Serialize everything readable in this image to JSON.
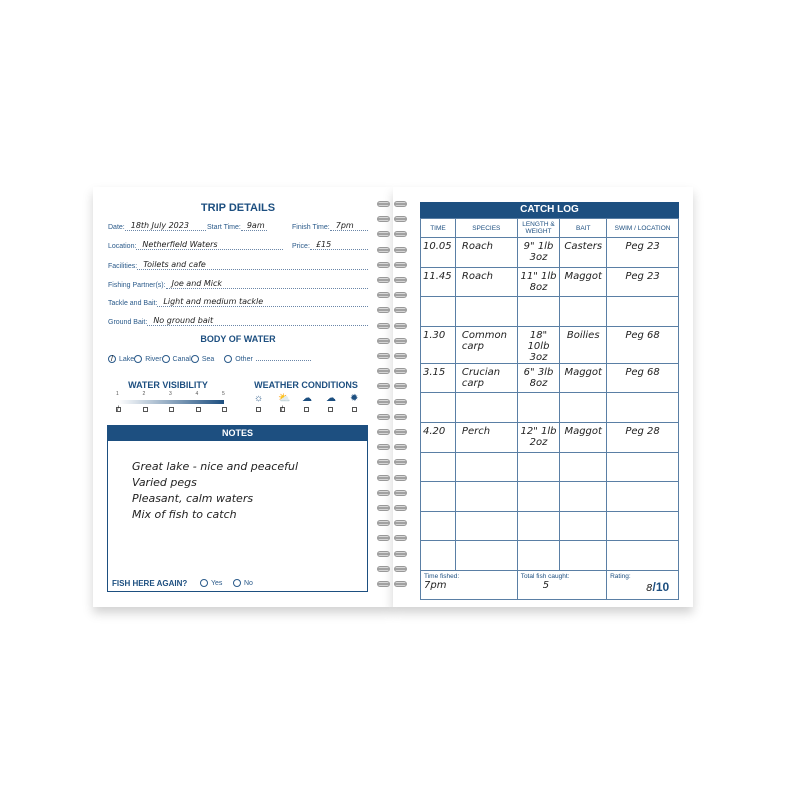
{
  "trip_details": {
    "title": "TRIP DETAILS",
    "date_label": "Date:",
    "date": "18th July 2023",
    "start_label": "Start Time:",
    "start": "9am",
    "finish_label": "Finish Time:",
    "finish": "7pm",
    "location_label": "Location:",
    "location": "Netherfield Waters",
    "price_label": "Price:",
    "price": "£15",
    "facilities_label": "Facilities:",
    "facilities": "Toilets and cafe",
    "partners_label": "Fishing Partner(s):",
    "partners": "Joe and Mick",
    "tackle_label": "Tackle and Bait:",
    "tackle": "Light and medium tackle",
    "groundbait_label": "Ground Bait:",
    "groundbait": "No ground bait"
  },
  "body_of_water": {
    "title": "BODY OF WATER",
    "options": [
      "Lake",
      "River",
      "Canal",
      "Sea",
      "Other"
    ],
    "selected": "Lake"
  },
  "water_visibility": {
    "title": "WATER VISIBILITY",
    "scale": [
      "1",
      "2",
      "3",
      "4",
      "5"
    ],
    "selected": "1"
  },
  "weather": {
    "title": "WEATHER CONDITIONS",
    "icons": [
      "sun-icon",
      "sun-cloud-icon",
      "rain-cloud-icon",
      "storm-cloud-icon",
      "snow-icon"
    ],
    "selected": "sun-cloud-icon"
  },
  "notes": {
    "title": "NOTES",
    "lines": [
      "Great lake - nice and peaceful",
      "Varied pegs",
      "Pleasant, calm waters",
      "Mix of fish to catch"
    ],
    "again_label": "FISH HERE AGAIN?",
    "yes": "Yes",
    "no": "No",
    "selected": "Yes"
  },
  "catch_log": {
    "title": "CATCH LOG",
    "columns": [
      "TIME",
      "SPECIES",
      "LENGTH & WEIGHT",
      "BAIT",
      "SWIM / LOCATION"
    ],
    "rows": [
      [
        "10.05",
        "Roach",
        "9\" 1lb 3oz",
        "Casters",
        "Peg 23"
      ],
      [
        "11.45",
        "Roach",
        "11\" 1lb 8oz",
        "Maggot",
        "Peg 23"
      ],
      [
        "",
        "",
        "",
        "",
        ""
      ],
      [
        "1.30",
        "Common carp",
        "18\" 10lb 3oz",
        "Boilies",
        "Peg 68"
      ],
      [
        "3.15",
        "Crucian carp",
        "6\" 3lb 8oz",
        "Maggot",
        "Peg 68"
      ],
      [
        "",
        "",
        "",
        "",
        ""
      ],
      [
        "4.20",
        "Perch",
        "12\" 1lb 2oz",
        "Maggot",
        "Peg 28"
      ],
      [
        "",
        "",
        "",
        "",
        ""
      ],
      [
        "",
        "",
        "",
        "",
        ""
      ],
      [
        "",
        "",
        "",
        "",
        ""
      ],
      [
        "",
        "",
        "",
        "",
        ""
      ]
    ],
    "time_fished_label": "Time fished:",
    "time_fished": "7pm",
    "total_label": "Total fish caught:",
    "total": "5",
    "rating_label": "Rating:",
    "rating": "8",
    "rating_out_of": "/10"
  },
  "colors": {
    "accent": "#1d4f80"
  }
}
